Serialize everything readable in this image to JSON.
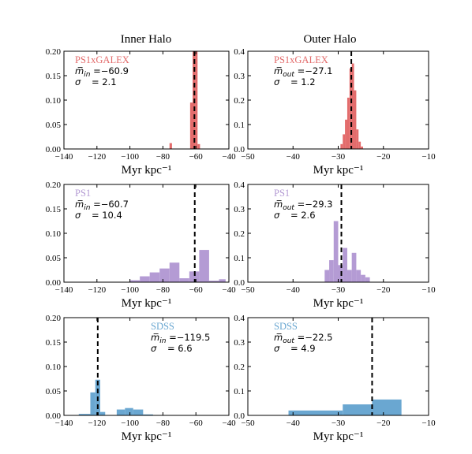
{
  "chart_data": {
    "type": "bar",
    "columns": [
      {
        "title": "Inner Halo",
        "xlim": [
          -140,
          -40
        ],
        "xticks": [
          -140,
          -120,
          -100,
          -80,
          -60,
          -40
        ],
        "xtick_labels": [
          "−140",
          "−120",
          "−100",
          "−80",
          "−60",
          "−40"
        ]
      },
      {
        "title": "Outer Halo",
        "xlim": [
          -50,
          -10
        ],
        "xticks": [
          -50,
          -40,
          -30,
          -20,
          -10
        ],
        "xtick_labels": [
          "−50",
          "−40",
          "−30",
          "−20",
          "−10"
        ]
      }
    ],
    "xlabel": "Myr kpc⁻¹",
    "panels": [
      {
        "row": 0,
        "col": 0,
        "survey": "PS1xGALEX",
        "color": "#e36b6b",
        "ylim": [
          0,
          0.2
        ],
        "yticks": [
          "0.00",
          "0.05",
          "0.10",
          "0.15",
          "0.20"
        ],
        "mean_label": "m̅",
        "mean_sub": "in",
        "mean_text": " =−60.9",
        "sigma_text": " = 2.1",
        "mean_value": -60.9,
        "bins": [
          [
            -76,
            -74.5,
            0.012
          ],
          [
            -63.5,
            -62,
            0.095
          ],
          [
            -62,
            -60.5,
            0.2
          ],
          [
            -60.5,
            -59,
            0.2
          ],
          [
            -59,
            -57.5,
            0.01
          ]
        ]
      },
      {
        "row": 0,
        "col": 1,
        "survey": "PS1xGALEX",
        "color": "#e36b6b",
        "ylim": [
          0,
          0.4
        ],
        "yticks": [
          "0.0",
          "0.1",
          "0.2",
          "0.3",
          "0.4"
        ],
        "mean_label": "m̅",
        "mean_sub": "out",
        "mean_text": " =−27.1",
        "sigma_text": " = 1.2",
        "mean_value": -27.1,
        "bins": [
          [
            -29.5,
            -29,
            0.02
          ],
          [
            -29,
            -28.5,
            0.06
          ],
          [
            -28.5,
            -28,
            0.12
          ],
          [
            -28,
            -27.5,
            0.21
          ],
          [
            -27.5,
            -27,
            0.33
          ],
          [
            -27,
            -26.5,
            0.35
          ],
          [
            -26.5,
            -26,
            0.24
          ],
          [
            -26,
            -25.5,
            0.08
          ],
          [
            -25.5,
            -25,
            0.03
          ],
          [
            -25,
            -24.5,
            0.01
          ]
        ]
      },
      {
        "row": 1,
        "col": 0,
        "survey": "PS1",
        "color": "#b49bd4",
        "ylim": [
          0,
          0.2
        ],
        "yticks": [
          "0.00",
          "0.05",
          "0.10",
          "0.15",
          "0.20"
        ],
        "mean_label": "m̅",
        "mean_sub": "in",
        "mean_text": " =−60.7",
        "sigma_text": " = 10.4",
        "mean_value": -60.7,
        "bins": [
          [
            -100,
            -94,
            0.004
          ],
          [
            -94,
            -88,
            0.012
          ],
          [
            -88,
            -82,
            0.02
          ],
          [
            -82,
            -76,
            0.028
          ],
          [
            -76,
            -70,
            0.04
          ],
          [
            -70,
            -64,
            0.008
          ],
          [
            -64,
            -58,
            0.022
          ],
          [
            -58,
            -52,
            0.066
          ],
          [
            -52,
            -46,
            0.003
          ],
          [
            -46,
            -42,
            0.006
          ]
        ]
      },
      {
        "row": 1,
        "col": 1,
        "survey": "PS1",
        "color": "#b49bd4",
        "ylim": [
          0,
          0.4
        ],
        "yticks": [
          "0.0",
          "0.1",
          "0.2",
          "0.3",
          "0.4"
        ],
        "mean_label": "m̅",
        "mean_sub": "out",
        "mean_text": " =−29.3",
        "sigma_text": " = 2.6",
        "mean_value": -29.3,
        "bins": [
          [
            -33,
            -32,
            0.05
          ],
          [
            -32,
            -31,
            0.09
          ],
          [
            -31,
            -30,
            0.25
          ],
          [
            -30,
            -29,
            0.07
          ],
          [
            -29,
            -28,
            0.14
          ],
          [
            -28,
            -27,
            0.05
          ],
          [
            -27,
            -26,
            0.12
          ],
          [
            -26,
            -25,
            0.05
          ],
          [
            -25,
            -24,
            0.03
          ],
          [
            -24,
            -23,
            0.02
          ]
        ]
      },
      {
        "row": 2,
        "col": 0,
        "survey": "SDSS",
        "color": "#6aa7d1",
        "ylim": [
          0,
          0.2
        ],
        "yticks": [
          "0.00",
          "0.05",
          "0.10",
          "0.15",
          "0.20"
        ],
        "mean_label": "m̅",
        "mean_sub": "in",
        "mean_text": " =−119.5",
        "sigma_text": " = 6.6",
        "mean_value": -119.5,
        "bins": [
          [
            -131,
            -124,
            0.003
          ],
          [
            -124,
            -121,
            0.047
          ],
          [
            -121,
            -118,
            0.073
          ],
          [
            -118,
            -115,
            0.007
          ],
          [
            -108,
            -103,
            0.012
          ],
          [
            -103,
            -98,
            0.015
          ],
          [
            -98,
            -92,
            0.012
          ],
          [
            -92,
            -86,
            0.002
          ]
        ]
      },
      {
        "row": 2,
        "col": 1,
        "survey": "SDSS",
        "color": "#6aa7d1",
        "ylim": [
          0,
          0.4
        ],
        "yticks": [
          "0.0",
          "0.1",
          "0.2",
          "0.3",
          "0.4"
        ],
        "mean_label": "m̅",
        "mean_sub": "out",
        "mean_text": " =−22.5",
        "sigma_text": " = 4.9",
        "mean_value": -22.5,
        "bins": [
          [
            -41,
            -29,
            0.02
          ],
          [
            -29,
            -22.5,
            0.045
          ],
          [
            -22.5,
            -16,
            0.065
          ]
        ]
      }
    ]
  }
}
